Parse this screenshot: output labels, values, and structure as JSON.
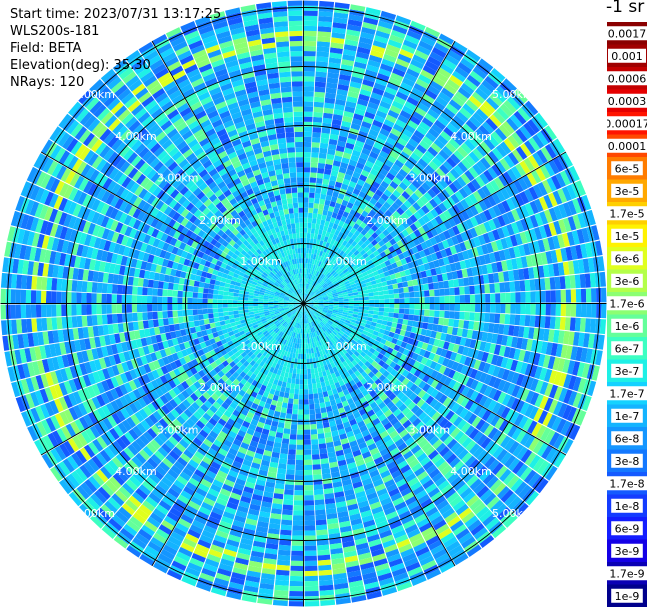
{
  "info": {
    "start_time": "Start time: 2023/07/31 13:17:25",
    "instrument": "WLS200s-181",
    "field": "Field: BETA",
    "elevation": "Elevation(deg): 35.30",
    "nrays": "NRays: 120"
  },
  "units_label": "-1 sr",
  "range_rings": [
    "1.00km",
    "2.00km",
    "3.00km",
    "4.00km",
    "5.00km"
  ],
  "colorbar": {
    "labels": [
      "0.0017",
      "0.001",
      "0.0006",
      "0.0003",
      "0.00017",
      "0.0001",
      "6e-5",
      "3e-5",
      "1.7e-5",
      "1e-5",
      "6e-6",
      "3e-6",
      "1.7e-6",
      "1e-6",
      "6e-7",
      "3e-7",
      "1.7e-7",
      "1e-7",
      "6e-8",
      "3e-8",
      "1.7e-8",
      "1e-8",
      "6e-9",
      "3e-9",
      "1.7e-9",
      "1e-9"
    ],
    "colors": [
      "#8a0000",
      "#a00000",
      "#c40000",
      "#e60000",
      "#ff1400",
      "#ff4800",
      "#ff7c00",
      "#ffa800",
      "#ffcf00",
      "#fff200",
      "#e0ff1e",
      "#b4ff4a",
      "#8cff72",
      "#64ff9a",
      "#3cffc2",
      "#1ef0e6",
      "#14d2ff",
      "#14b4ff",
      "#1496ff",
      "#1478ff",
      "#145aff",
      "#143cff",
      "#141eff",
      "#1400e6",
      "#0a00b4",
      "#00008c"
    ]
  }
}
